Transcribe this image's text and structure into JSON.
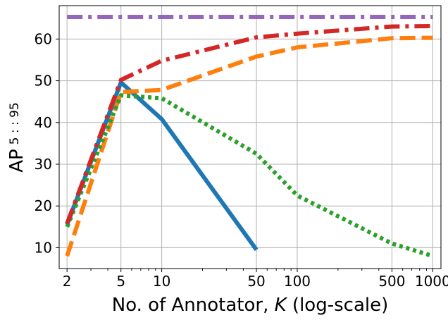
{
  "chart_data": {
    "type": "line",
    "title": "",
    "xlabel_main": "No. of Annotator, ",
    "xlabel_var": "K",
    "xlabel_suffix": " (log-scale)",
    "ylabel_main": "AP",
    "ylabel_sub": "5 : : 95",
    "xscale": "log",
    "xlim": [
      1.75,
      1150
    ],
    "ylim": [
      5,
      68
    ],
    "grid": true,
    "legend": "none",
    "x_ticks": [
      2,
      5,
      10,
      50,
      100,
      500,
      1000
    ],
    "x_tick_labels": [
      "2",
      "5",
      "10",
      "50",
      "100",
      "500",
      "1000"
    ],
    "y_ticks": [
      10,
      20,
      30,
      40,
      50,
      60
    ],
    "y_tick_labels": [
      "10",
      "20",
      "30",
      "40",
      "50",
      "60"
    ],
    "series": [
      {
        "color": "#9467bd",
        "style": "dashdot",
        "x": [
          2,
          5,
          10,
          50,
          100,
          500,
          1000
        ],
        "y": [
          65.3,
          65.3,
          65.3,
          65.3,
          65.3,
          65.3,
          65.3
        ]
      },
      {
        "color": "#1f77b4",
        "style": "solid",
        "x": [
          2,
          5,
          10,
          50
        ],
        "y": [
          15.5,
          49.6,
          40.8,
          9.5
        ]
      },
      {
        "color": "#ff7f0e",
        "style": "dashed",
        "x": [
          2,
          5,
          10,
          50,
          100,
          500,
          1000
        ],
        "y": [
          8.0,
          47.3,
          47.8,
          55.8,
          58.0,
          60.2,
          60.3
        ]
      },
      {
        "color": "#2ca02c",
        "style": "dotted",
        "x": [
          2,
          5,
          10,
          50,
          100,
          500,
          1000
        ],
        "y": [
          15.0,
          46.5,
          45.8,
          32.5,
          22.5,
          11.0,
          8.0
        ]
      },
      {
        "color": "#d62728",
        "style": "dashdot",
        "x": [
          2,
          5,
          10,
          50,
          100,
          500,
          1000
        ],
        "y": [
          15.8,
          50.2,
          54.8,
          60.4,
          61.3,
          63.0,
          63.1
        ]
      }
    ]
  }
}
